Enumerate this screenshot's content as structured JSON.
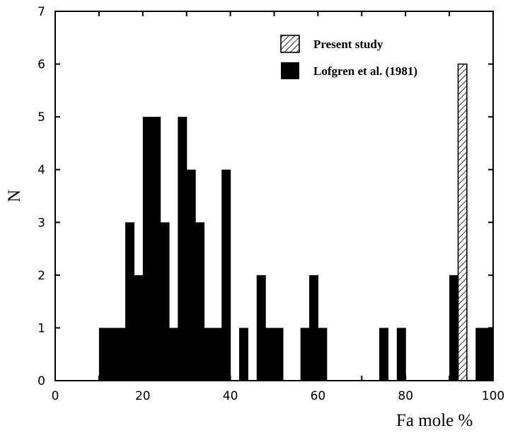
{
  "chart_data": {
    "type": "bar",
    "title": "",
    "xlabel": "Fa mole %",
    "ylabel": "N",
    "xlim": [
      0,
      100
    ],
    "ylim": [
      0,
      7
    ],
    "bin_width": 2,
    "x_ticks": [
      0,
      20,
      40,
      60,
      80,
      100
    ],
    "y_ticks": [
      0,
      1,
      2,
      3,
      4,
      5,
      6,
      7
    ],
    "legend_position": "top-right",
    "grid": false,
    "series": [
      {
        "name": "Present study",
        "pattern": "hatched",
        "bins": [
          {
            "x": 93,
            "value": 6
          }
        ]
      },
      {
        "name": "Lofgren et al. (1981)",
        "pattern": "solid",
        "color": "#000000",
        "bins": [
          {
            "x": 11,
            "value": 1
          },
          {
            "x": 13,
            "value": 1
          },
          {
            "x": 15,
            "value": 1
          },
          {
            "x": 17,
            "value": 3
          },
          {
            "x": 19,
            "value": 2
          },
          {
            "x": 21,
            "value": 5
          },
          {
            "x": 23,
            "value": 5
          },
          {
            "x": 25,
            "value": 3
          },
          {
            "x": 27,
            "value": 1
          },
          {
            "x": 29,
            "value": 5
          },
          {
            "x": 31,
            "value": 4
          },
          {
            "x": 33,
            "value": 3
          },
          {
            "x": 35,
            "value": 1
          },
          {
            "x": 37,
            "value": 1
          },
          {
            "x": 39,
            "value": 4
          },
          {
            "x": 43,
            "value": 1
          },
          {
            "x": 47,
            "value": 2
          },
          {
            "x": 49,
            "value": 1
          },
          {
            "x": 51,
            "value": 1
          },
          {
            "x": 57,
            "value": 1
          },
          {
            "x": 59,
            "value": 2
          },
          {
            "x": 61,
            "value": 1
          },
          {
            "x": 75,
            "value": 1
          },
          {
            "x": 79,
            "value": 1
          },
          {
            "x": 91,
            "value": 2
          },
          {
            "x": 97,
            "value": 1
          },
          {
            "x": 99,
            "value": 1
          }
        ]
      }
    ]
  }
}
